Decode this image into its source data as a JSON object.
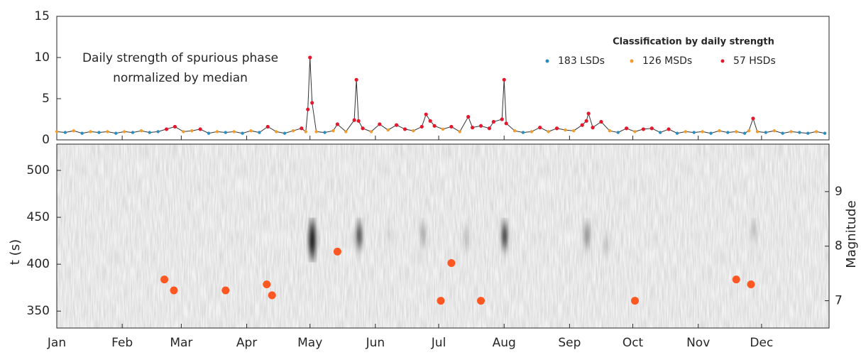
{
  "chart_data": [
    {
      "type": "line",
      "annotation": [
        "Daily strength of spurious phase",
        "normalized by median"
      ],
      "legend_title": "Classification by daily strength",
      "classes": [
        {
          "name": "183 LSDs",
          "color": "#2b8cbe"
        },
        {
          "name": "126 MSDs",
          "color": "#f39c2b"
        },
        {
          "name": "57 HSDs",
          "color": "#e3182d"
        }
      ],
      "line_color": "#333333",
      "x": [
        1,
        5,
        9,
        13,
        17,
        21,
        25,
        29,
        33,
        37,
        41,
        45,
        49,
        53,
        57,
        61,
        65,
        69,
        73,
        77,
        81,
        85,
        89,
        93,
        97,
        101,
        105,
        109,
        113,
        117,
        119,
        120,
        121,
        122,
        124,
        128,
        132,
        134,
        138,
        142,
        143,
        144,
        146,
        150,
        154,
        158,
        162,
        166,
        170,
        174,
        176,
        178,
        180,
        184,
        188,
        192,
        196,
        198,
        202,
        206,
        208,
        212,
        213,
        214,
        218,
        222,
        226,
        230,
        234,
        238,
        242,
        246,
        250,
        252,
        253,
        255,
        259,
        263,
        267,
        271,
        275,
        279,
        283,
        287,
        291,
        295,
        299,
        303,
        307,
        311,
        315,
        319,
        323,
        327,
        329,
        331,
        333,
        337,
        341,
        345,
        349,
        353,
        357,
        361,
        365
      ],
      "values": [
        1.0,
        0.9,
        1.1,
        0.8,
        1.0,
        0.9,
        1.0,
        0.8,
        1.0,
        0.9,
        1.1,
        0.9,
        1.0,
        1.3,
        1.6,
        1.0,
        1.1,
        1.3,
        0.8,
        1.0,
        0.9,
        1.0,
        0.8,
        1.1,
        0.9,
        1.6,
        1.0,
        0.8,
        1.1,
        1.4,
        1.0,
        3.7,
        10.0,
        4.5,
        1.0,
        0.9,
        1.1,
        1.9,
        1.0,
        2.4,
        7.3,
        2.3,
        1.4,
        1.0,
        1.9,
        1.2,
        1.8,
        1.3,
        1.1,
        1.6,
        3.1,
        2.3,
        1.7,
        1.3,
        1.6,
        1.0,
        2.8,
        1.5,
        1.7,
        1.4,
        2.2,
        2.5,
        7.3,
        2.0,
        1.1,
        0.9,
        1.0,
        1.5,
        1.0,
        1.4,
        1.2,
        1.1,
        1.8,
        2.3,
        3.2,
        1.5,
        2.2,
        1.1,
        0.9,
        1.4,
        1.0,
        1.3,
        1.4,
        0.9,
        1.3,
        0.8,
        1.0,
        0.9,
        1.0,
        0.8,
        1.1,
        0.9,
        1.0,
        0.8,
        1.1,
        2.6,
        1.0,
        0.9,
        1.1,
        0.8,
        1.0,
        0.9,
        0.8,
        1.0,
        0.8
      ],
      "class": [
        1,
        0,
        1,
        0,
        1,
        0,
        1,
        0,
        1,
        0,
        1,
        0,
        0,
        2,
        2,
        1,
        1,
        2,
        0,
        1,
        0,
        1,
        0,
        1,
        0,
        2,
        1,
        0,
        1,
        2,
        1,
        2,
        2,
        2,
        1,
        0,
        1,
        2,
        1,
        2,
        2,
        2,
        2,
        1,
        2,
        1,
        2,
        2,
        1,
        2,
        2,
        2,
        2,
        1,
        2,
        1,
        2,
        2,
        2,
        2,
        2,
        2,
        2,
        2,
        1,
        0,
        1,
        2,
        1,
        2,
        1,
        1,
        2,
        2,
        2,
        2,
        2,
        1,
        0,
        2,
        1,
        2,
        2,
        0,
        2,
        0,
        1,
        0,
        1,
        0,
        1,
        0,
        1,
        0,
        1,
        2,
        1,
        0,
        1,
        0,
        1,
        0,
        0,
        1,
        0
      ],
      "xlim": [
        1,
        367
      ],
      "ylim": [
        0,
        15
      ],
      "yticks": [
        0,
        5,
        10,
        15
      ]
    },
    {
      "type": "scatter",
      "ylabel": "t (s)",
      "y2label": "Magnitude",
      "xlim": [
        1,
        367
      ],
      "ylim": [
        332,
        528
      ],
      "yticks": [
        350,
        400,
        450,
        500
      ],
      "y2lim": [
        6.5,
        9.87
      ],
      "y2ticks": [
        7,
        8,
        9
      ],
      "xticks": [
        {
          "value": 1,
          "label": "Jan"
        },
        {
          "value": 32,
          "label": "Feb"
        },
        {
          "value": 60,
          "label": "Mar"
        },
        {
          "value": 91,
          "label": "Apr"
        },
        {
          "value": 121,
          "label": "May"
        },
        {
          "value": 152,
          "label": "Jun"
        },
        {
          "value": 182,
          "label": "Jul"
        },
        {
          "value": 213,
          "label": "Aug"
        },
        {
          "value": 244,
          "label": "Sep"
        },
        {
          "value": 274,
          "label": "Oct"
        },
        {
          "value": 305,
          "label": "Nov"
        },
        {
          "value": 335,
          "label": "Dec"
        }
      ],
      "series": [
        {
          "color": "#ff5722",
          "axis": "y2",
          "x": [
            52,
            56.5,
            81,
            100.5,
            103,
            134,
            183,
            188,
            202,
            275,
            323,
            330
          ],
          "values": [
            7.39,
            7.19,
            7.19,
            7.3,
            7.1,
            7.9,
            7.0,
            7.69,
            7.0,
            7.0,
            7.39,
            7.3
          ]
        }
      ]
    }
  ]
}
